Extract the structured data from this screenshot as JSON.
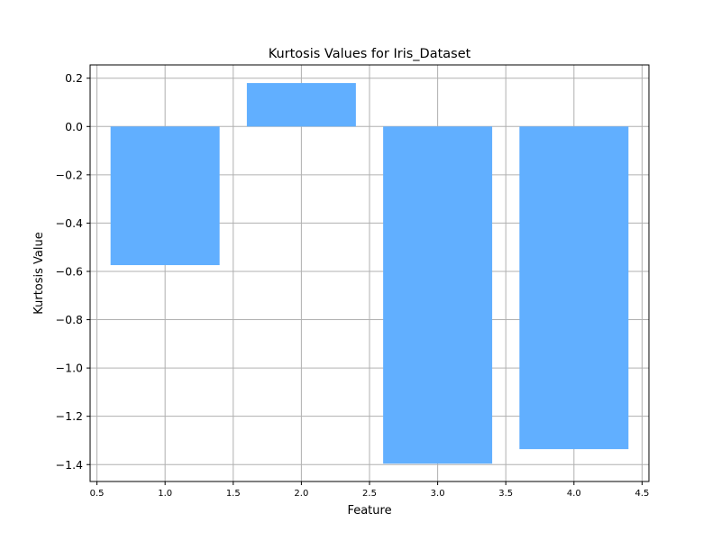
{
  "chart_data": {
    "type": "bar",
    "title": "Kurtosis Values for Iris_Dataset",
    "xlabel": "Feature",
    "ylabel": "Kurtosis Value",
    "x": [
      1,
      2,
      3,
      4
    ],
    "values": [
      -0.574,
      0.18,
      -1.396,
      -1.336
    ],
    "bar_width": 0.8,
    "xlim": [
      0.45,
      4.55
    ],
    "ylim": [
      -1.47,
      0.255
    ],
    "xticks": [
      0.5,
      1.0,
      1.5,
      2.0,
      2.5,
      3.0,
      3.5,
      4.0,
      4.5
    ],
    "xtick_labels": [
      "0.5",
      "1.0",
      "1.5",
      "2.0",
      "2.5",
      "3.0",
      "3.5",
      "4.0",
      "4.5"
    ],
    "yticks": [
      0.2,
      0.0,
      -0.2,
      -0.4,
      -0.6,
      -0.8,
      -1.0,
      -1.2,
      -1.4
    ],
    "ytick_labels": [
      "0.2",
      "0.0",
      "−0.2",
      "−0.4",
      "−0.6",
      "−0.8",
      "−1.0",
      "−1.2",
      "−1.4"
    ],
    "grid": true,
    "bar_color": "#61afff",
    "grid_color": "#b0b0b0"
  }
}
